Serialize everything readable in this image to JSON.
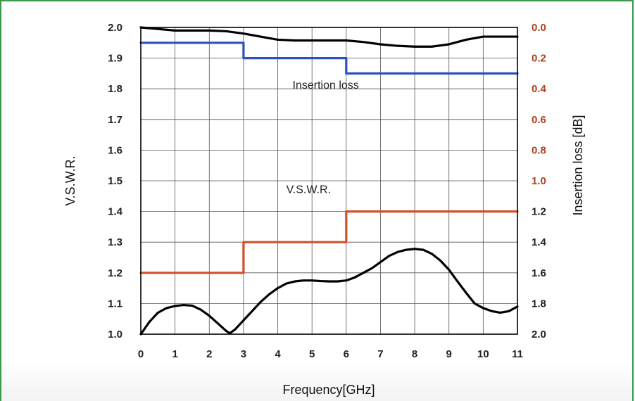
{
  "chart_data": {
    "type": "line",
    "xlabel": "Frequency[GHz]",
    "ylabel_left": "V.S.W.R.",
    "ylabel_right": "Insertion loss [dB]",
    "xlim": [
      0,
      11
    ],
    "ylim_left": [
      1.0,
      2.0
    ],
    "ylim_right": [
      2.0,
      0.0
    ],
    "x_ticks": [
      "0",
      "1",
      "2",
      "3",
      "4",
      "5",
      "6",
      "7",
      "8",
      "9",
      "10",
      "11"
    ],
    "y_ticks_left": [
      "1.0",
      "1.1",
      "1.2",
      "1.3",
      "1.4",
      "1.5",
      "1.6",
      "1.7",
      "1.8",
      "1.9",
      "2.0"
    ],
    "y_ticks_right": [
      "2.0",
      "1.8",
      "1.6",
      "1.4",
      "1.2",
      "1.0",
      "0.8",
      "0.6",
      "0.4",
      "0.2",
      "0.0"
    ],
    "grid": true,
    "annotations": [
      {
        "text": "Insertion loss",
        "x": 5.4,
        "y": 1.8
      },
      {
        "text": "V.S.W.R.",
        "x": 4.9,
        "y": 1.46
      }
    ],
    "series": [
      {
        "axis": "left",
        "color": "#000000",
        "x": [
          0,
          0.25,
          0.5,
          0.75,
          1.0,
          1.25,
          1.5,
          1.75,
          2.0,
          2.25,
          2.5,
          2.6,
          2.75,
          3.0,
          3.25,
          3.5,
          3.75,
          4.0,
          4.25,
          4.5,
          4.75,
          5.0,
          5.25,
          5.5,
          5.75,
          6.0,
          6.25,
          6.5,
          6.75,
          7.0,
          7.25,
          7.5,
          7.75,
          8.0,
          8.25,
          8.5,
          8.75,
          9.0,
          9.25,
          9.5,
          9.75,
          10.0,
          10.25,
          10.5,
          10.75,
          11.0
        ],
        "y": [
          1.0,
          1.04,
          1.07,
          1.085,
          1.092,
          1.095,
          1.093,
          1.08,
          1.06,
          1.035,
          1.01,
          1.003,
          1.015,
          1.045,
          1.075,
          1.105,
          1.13,
          1.15,
          1.165,
          1.172,
          1.175,
          1.175,
          1.173,
          1.172,
          1.172,
          1.175,
          1.185,
          1.2,
          1.215,
          1.235,
          1.255,
          1.268,
          1.275,
          1.278,
          1.275,
          1.262,
          1.24,
          1.21,
          1.172,
          1.135,
          1.1,
          1.085,
          1.075,
          1.07,
          1.075,
          1.09
        ]
      },
      {
        "axis": "right",
        "color": "#000000",
        "x": [
          0,
          0.5,
          1.0,
          1.5,
          2.0,
          2.5,
          3.0,
          3.5,
          4.0,
          4.5,
          5.0,
          5.5,
          6.0,
          6.5,
          7.0,
          7.5,
          8.0,
          8.5,
          9.0,
          9.5,
          10.0,
          10.5,
          11.0
        ],
        "y": [
          0.0,
          0.01,
          0.02,
          0.02,
          0.02,
          0.025,
          0.04,
          0.06,
          0.08,
          0.085,
          0.085,
          0.085,
          0.085,
          0.095,
          0.11,
          0.12,
          0.125,
          0.125,
          0.11,
          0.08,
          0.06,
          0.06,
          0.06
        ]
      },
      {
        "axis": "right",
        "color": "#2a52be",
        "x": [
          0,
          3,
          3,
          6,
          6,
          11
        ],
        "y": [
          0.1,
          0.1,
          0.2,
          0.2,
          0.3,
          0.3
        ]
      },
      {
        "axis": "left",
        "color": "#d0502a",
        "x": [
          0,
          3,
          3,
          6,
          6,
          11
        ],
        "y": [
          1.2,
          1.2,
          1.3,
          1.3,
          1.4,
          1.4
        ]
      }
    ]
  }
}
